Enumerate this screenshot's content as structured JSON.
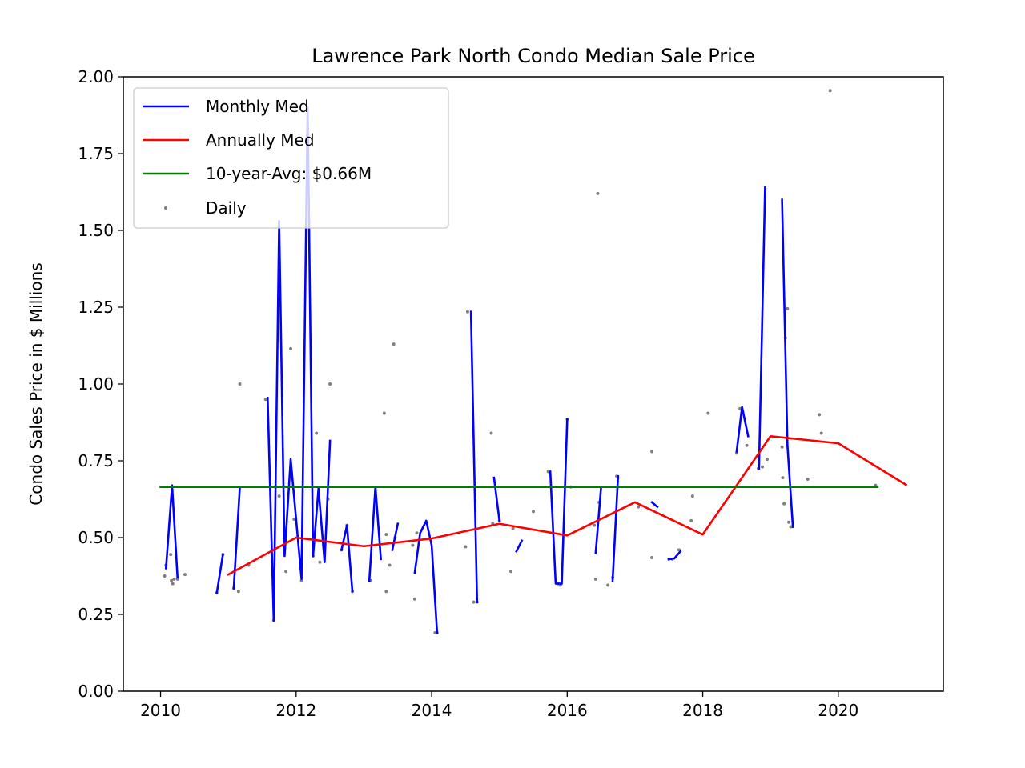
{
  "chart_data": {
    "type": "line",
    "title": "Lawrence Park North Condo Median Sale Price",
    "xlabel": "",
    "ylabel": "Condo Sales Price in $ Millions",
    "xlim": [
      2009.45,
      2021.55
    ],
    "ylim": [
      0,
      2
    ],
    "x_ticks": [
      2010,
      2012,
      2014,
      2016,
      2018,
      2020
    ],
    "x_tick_labels": [
      "2010",
      "2012",
      "2014",
      "2016",
      "2018",
      "2020"
    ],
    "y_ticks": [
      0,
      0.25,
      0.5,
      0.75,
      1.0,
      1.25,
      1.5,
      1.75,
      2.0
    ],
    "y_tick_labels": [
      "0.00",
      "0.25",
      "0.50",
      "0.75",
      "1.00",
      "1.25",
      "1.50",
      "1.75",
      "2.00"
    ],
    "grid": false,
    "legend_position": "top-left",
    "series": [
      {
        "name": "Monthly Med",
        "kind": "line",
        "color": "#0000ff",
        "segments": [
          [
            [
              2010.08,
              0.4
            ],
            [
              2010.17,
              0.67
            ],
            [
              2010.25,
              0.37
            ]
          ],
          [
            [
              2010.83,
              0.32
            ],
            [
              2010.92,
              0.445
            ]
          ],
          [
            [
              2011.08,
              0.335
            ],
            [
              2011.17,
              0.665
            ]
          ],
          [
            [
              2011.58,
              0.955
            ],
            [
              2011.67,
              0.23
            ],
            [
              2011.75,
              1.53
            ],
            [
              2011.83,
              0.44
            ],
            [
              2011.92,
              0.755
            ],
            [
              2012.0,
              0.56
            ],
            [
              2012.08,
              0.365
            ],
            [
              2012.17,
              1.9
            ],
            [
              2012.25,
              0.44
            ],
            [
              2012.33,
              0.66
            ],
            [
              2012.42,
              0.42
            ],
            [
              2012.5,
              0.815
            ]
          ],
          [
            [
              2012.67,
              0.46
            ],
            [
              2012.75,
              0.54
            ],
            [
              2012.83,
              0.325
            ]
          ],
          [
            [
              2013.08,
              0.36
            ],
            [
              2013.17,
              0.665
            ],
            [
              2013.25,
              0.43
            ]
          ],
          [
            [
              2013.42,
              0.46
            ],
            [
              2013.5,
              0.545
            ]
          ],
          [
            [
              2013.75,
              0.385
            ],
            [
              2013.83,
              0.515
            ],
            [
              2013.92,
              0.555
            ],
            [
              2014.0,
              0.475
            ],
            [
              2014.08,
              0.19
            ]
          ],
          [
            [
              2014.58,
              1.235
            ],
            [
              2014.67,
              0.29
            ]
          ],
          [
            [
              2014.92,
              0.695
            ],
            [
              2015.0,
              0.555
            ]
          ],
          [
            [
              2015.25,
              0.455
            ],
            [
              2015.33,
              0.49
            ]
          ],
          [
            [
              2015.75,
              0.715
            ],
            [
              2015.83,
              0.35
            ],
            [
              2015.92,
              0.35
            ],
            [
              2016.0,
              0.885
            ]
          ],
          [
            [
              2016.42,
              0.45
            ],
            [
              2016.5,
              0.665
            ]
          ],
          [
            [
              2016.67,
              0.36
            ],
            [
              2016.75,
              0.7
            ]
          ],
          [
            [
              2017.25,
              0.615
            ],
            [
              2017.33,
              0.6
            ]
          ],
          [
            [
              2017.5,
              0.43
            ],
            [
              2017.58,
              0.432
            ],
            [
              2017.67,
              0.455
            ]
          ],
          [
            [
              2018.5,
              0.78
            ],
            [
              2018.58,
              0.925
            ],
            [
              2018.67,
              0.83
            ]
          ],
          [
            [
              2018.83,
              0.725
            ],
            [
              2018.92,
              1.64
            ]
          ],
          [
            [
              2019.17,
              1.6
            ],
            [
              2019.25,
              0.8
            ],
            [
              2019.33,
              0.535
            ]
          ]
        ]
      },
      {
        "name": "Annually Med",
        "kind": "line",
        "color": "#ff0000",
        "points": [
          [
            2011.0,
            0.38
          ],
          [
            2012.0,
            0.5
          ],
          [
            2013.0,
            0.472
          ],
          [
            2014.0,
            0.497
          ],
          [
            2015.0,
            0.545
          ],
          [
            2016.0,
            0.507
          ],
          [
            2017.0,
            0.615
          ],
          [
            2018.0,
            0.51
          ],
          [
            2019.0,
            0.83
          ],
          [
            2020.0,
            0.807
          ],
          [
            2021.0,
            0.672
          ]
        ]
      },
      {
        "name": "10-year-Avg: $0.66M",
        "kind": "line",
        "color": "#008000",
        "points": [
          [
            2010.0,
            0.665
          ],
          [
            2020.58,
            0.665
          ]
        ]
      },
      {
        "name": "Daily",
        "kind": "scatter",
        "color": "#808080",
        "points": [
          [
            2010.06,
            0.375
          ],
          [
            2010.08,
            0.41
          ],
          [
            2010.15,
            0.445
          ],
          [
            2010.16,
            0.36
          ],
          [
            2010.18,
            0.35
          ],
          [
            2010.2,
            0.365
          ],
          [
            2010.25,
            0.365
          ],
          [
            2010.36,
            0.38
          ],
          [
            2010.83,
            0.32
          ],
          [
            2010.92,
            0.445
          ],
          [
            2011.08,
            0.335
          ],
          [
            2011.15,
            0.325
          ],
          [
            2011.17,
            1.0
          ],
          [
            2011.3,
            0.41
          ],
          [
            2011.55,
            0.95
          ],
          [
            2011.67,
            0.23
          ],
          [
            2011.75,
            0.635
          ],
          [
            2011.85,
            0.39
          ],
          [
            2011.92,
            1.115
          ],
          [
            2011.97,
            0.56
          ],
          [
            2012.08,
            0.36
          ],
          [
            2012.25,
            0.44
          ],
          [
            2012.3,
            0.84
          ],
          [
            2012.35,
            0.42
          ],
          [
            2012.47,
            0.625
          ],
          [
            2012.5,
            1.0
          ],
          [
            2012.67,
            0.46
          ],
          [
            2012.75,
            0.54
          ],
          [
            2012.83,
            0.325
          ],
          [
            2013.1,
            0.36
          ],
          [
            2013.3,
            0.905
          ],
          [
            2013.33,
            0.51
          ],
          [
            2013.33,
            0.325
          ],
          [
            2013.38,
            0.41
          ],
          [
            2013.44,
            1.13
          ],
          [
            2013.46,
            0.5
          ],
          [
            2013.72,
            0.475
          ],
          [
            2013.75,
            0.3
          ],
          [
            2013.78,
            0.515
          ],
          [
            2014.08,
            0.19
          ],
          [
            2014.05,
            0.19
          ],
          [
            2014.5,
            0.47
          ],
          [
            2014.53,
            1.235
          ],
          [
            2014.67,
            0.29
          ],
          [
            2014.62,
            0.29
          ],
          [
            2014.88,
            0.84
          ],
          [
            2014.9,
            0.545
          ],
          [
            2015.0,
            0.555
          ],
          [
            2015.17,
            0.39
          ],
          [
            2015.2,
            0.53
          ],
          [
            2015.5,
            0.585
          ],
          [
            2015.72,
            0.715
          ],
          [
            2015.87,
            0.35
          ],
          [
            2015.9,
            0.345
          ],
          [
            2016.0,
            0.885
          ],
          [
            2016.05,
            0.665
          ],
          [
            2016.4,
            0.54
          ],
          [
            2016.42,
            0.365
          ],
          [
            2016.45,
            1.62
          ],
          [
            2016.47,
            0.615
          ],
          [
            2016.6,
            0.345
          ],
          [
            2016.67,
            0.37
          ],
          [
            2016.73,
            0.7
          ],
          [
            2017.05,
            0.6
          ],
          [
            2017.25,
            0.78
          ],
          [
            2017.25,
            0.435
          ],
          [
            2017.5,
            0.43
          ],
          [
            2017.55,
            0.43
          ],
          [
            2017.65,
            0.46
          ],
          [
            2017.83,
            0.555
          ],
          [
            2017.85,
            0.635
          ],
          [
            2018.08,
            0.905
          ],
          [
            2018.5,
            0.775
          ],
          [
            2018.55,
            0.92
          ],
          [
            2018.65,
            0.8
          ],
          [
            2018.82,
            0.725
          ],
          [
            2018.88,
            0.73
          ],
          [
            2018.95,
            0.755
          ],
          [
            2019.17,
            0.795
          ],
          [
            2019.18,
            0.695
          ],
          [
            2019.2,
            0.61
          ],
          [
            2019.22,
            1.15
          ],
          [
            2019.25,
            1.245
          ],
          [
            2019.27,
            0.55
          ],
          [
            2019.3,
            0.535
          ],
          [
            2019.55,
            0.69
          ],
          [
            2019.72,
            0.9
          ],
          [
            2019.75,
            0.84
          ],
          [
            2019.88,
            1.955
          ],
          [
            2020.55,
            0.67
          ]
        ]
      }
    ]
  }
}
